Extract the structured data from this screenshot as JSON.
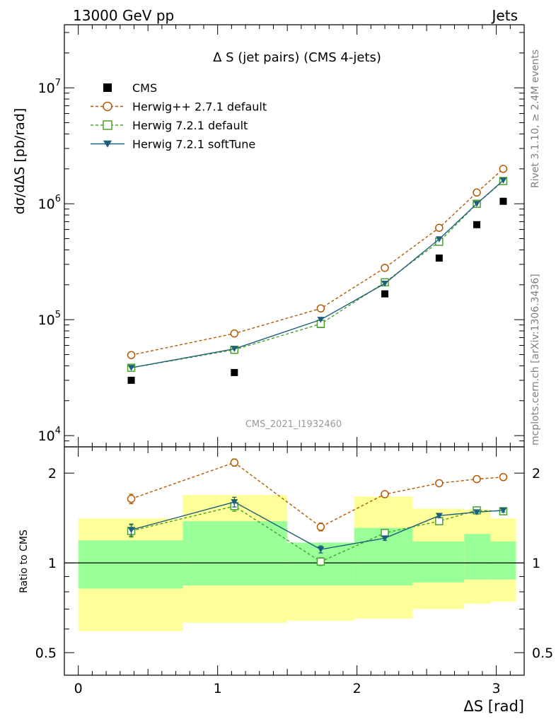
{
  "header": {
    "left": "13000 GeV pp",
    "right": "Jets"
  },
  "side_labels": {
    "rivet": "Rivet 3.1.10, ≥ 2.4M events",
    "mcplots": "mcplots.cern.ch [arXiv:1306.3436]"
  },
  "watermark": "CMS_2021_I1932460",
  "chart_data": [
    {
      "type": "scatter",
      "panel": "main",
      "title": "Δ S (jet pairs) (CMS 4-jets)",
      "ylabel": "dσ/dΔS [pb/rad]",
      "xlim": [
        -0.1,
        3.2
      ],
      "ylim": [
        8000,
        35000000
      ],
      "yscale": "log",
      "yticks": [
        {
          "value": 10000,
          "base": "10",
          "exp": "4"
        },
        {
          "value": 100000,
          "base": "10",
          "exp": "5"
        },
        {
          "value": 1000000,
          "base": "10",
          "exp": "6"
        },
        {
          "value": 10000000,
          "base": "10",
          "exp": "7"
        }
      ],
      "legend_position": "top-left",
      "series": [
        {
          "name": "CMS",
          "marker": "square-filled",
          "color": "#000000",
          "line": "none",
          "x": [
            0.38,
            1.12,
            1.74,
            2.2,
            2.59,
            2.86,
            3.05
          ],
          "y": [
            30000,
            35000,
            91000,
            167000,
            340000,
            660000,
            1050000
          ]
        },
        {
          "name": "Herwig++ 2.7.1 default",
          "marker": "circle-open",
          "color": "#b35900",
          "line": "dashed",
          "x": [
            0.38,
            1.12,
            1.74,
            2.2,
            2.59,
            2.86,
            3.05
          ],
          "y": [
            49500,
            76000,
            125000,
            280000,
            620000,
            1250000,
            2000000
          ]
        },
        {
          "name": "Herwig 7.2.1 default",
          "marker": "square-open",
          "color": "#4aa02c",
          "line": "dashed",
          "x": [
            0.38,
            1.12,
            1.74,
            2.2,
            2.59,
            2.86,
            3.05
          ],
          "y": [
            38500,
            55000,
            92000,
            210000,
            470000,
            1000000,
            1570000
          ]
        },
        {
          "name": "Herwig 7.2.1 softTune",
          "marker": "triangle-down-filled",
          "color": "#1f5f7a",
          "line": "solid",
          "x": [
            0.38,
            1.12,
            1.74,
            2.2,
            2.59,
            2.86,
            3.05
          ],
          "y": [
            38500,
            56000,
            100000,
            205000,
            495000,
            1000000,
            1590000
          ]
        }
      ]
    },
    {
      "type": "scatter",
      "panel": "ratio",
      "ylabel": "Ratio to CMS",
      "xlabel": "ΔS [rad]",
      "xlim": [
        -0.1,
        3.2
      ],
      "ylim": [
        0.42,
        2.45
      ],
      "yscale": "log",
      "xticks": [
        "0",
        "1",
        "2",
        "3"
      ],
      "yticks": [
        "0.5",
        "1",
        "2"
      ],
      "uncertainty_bands": {
        "edges": [
          0.0,
          0.75,
          1.5,
          1.98,
          2.4,
          2.77,
          2.96,
          3.14
        ],
        "stat_up": [
          1.19,
          1.38,
          1.17,
          1.31,
          1.18,
          1.25,
          1.18
        ],
        "stat_down": [
          0.82,
          0.84,
          0.84,
          0.84,
          0.86,
          0.88,
          0.88
        ],
        "total_up": [
          1.41,
          1.69,
          1.17,
          1.67,
          1.52,
          1.51,
          1.41
        ],
        "total_down": [
          0.59,
          0.63,
          0.64,
          0.65,
          0.7,
          0.73,
          0.74
        ],
        "stat_color": "#99ff99",
        "total_color": "#ffff99"
      },
      "series": [
        {
          "name": "Herwig++ 2.7.1 default",
          "marker": "circle-open",
          "color": "#b35900",
          "line": "dashed",
          "x": [
            0.38,
            1.12,
            1.74,
            2.2,
            2.59,
            2.86,
            3.05
          ],
          "y": [
            1.64,
            2.17,
            1.32,
            1.7,
            1.85,
            1.91,
            1.94
          ],
          "err": [
            0.06,
            0.06,
            0.04,
            0.02,
            0.02,
            0.02,
            0.02
          ]
        },
        {
          "name": "Herwig 7.2.1 default",
          "marker": "square-open",
          "color": "#4aa02c",
          "line": "dashed",
          "x": [
            0.38,
            1.12,
            1.74,
            2.2,
            2.59,
            2.86,
            3.05
          ],
          "y": [
            1.28,
            1.55,
            1.01,
            1.26,
            1.38,
            1.5,
            1.49
          ],
          "err": [
            0.06,
            0.06,
            0.03,
            0.02,
            0.02,
            0.02,
            0.02
          ]
        },
        {
          "name": "Herwig 7.2.1 softTune",
          "marker": "triangle-down-filled",
          "color": "#1f5f7a",
          "line": "solid",
          "x": [
            0.38,
            1.12,
            1.74,
            2.2,
            2.59,
            2.86,
            3.05
          ],
          "y": [
            1.29,
            1.6,
            1.11,
            1.21,
            1.44,
            1.48,
            1.5
          ],
          "err": [
            0.06,
            0.06,
            0.03,
            0.02,
            0.02,
            0.02,
            0.02
          ]
        }
      ]
    }
  ]
}
